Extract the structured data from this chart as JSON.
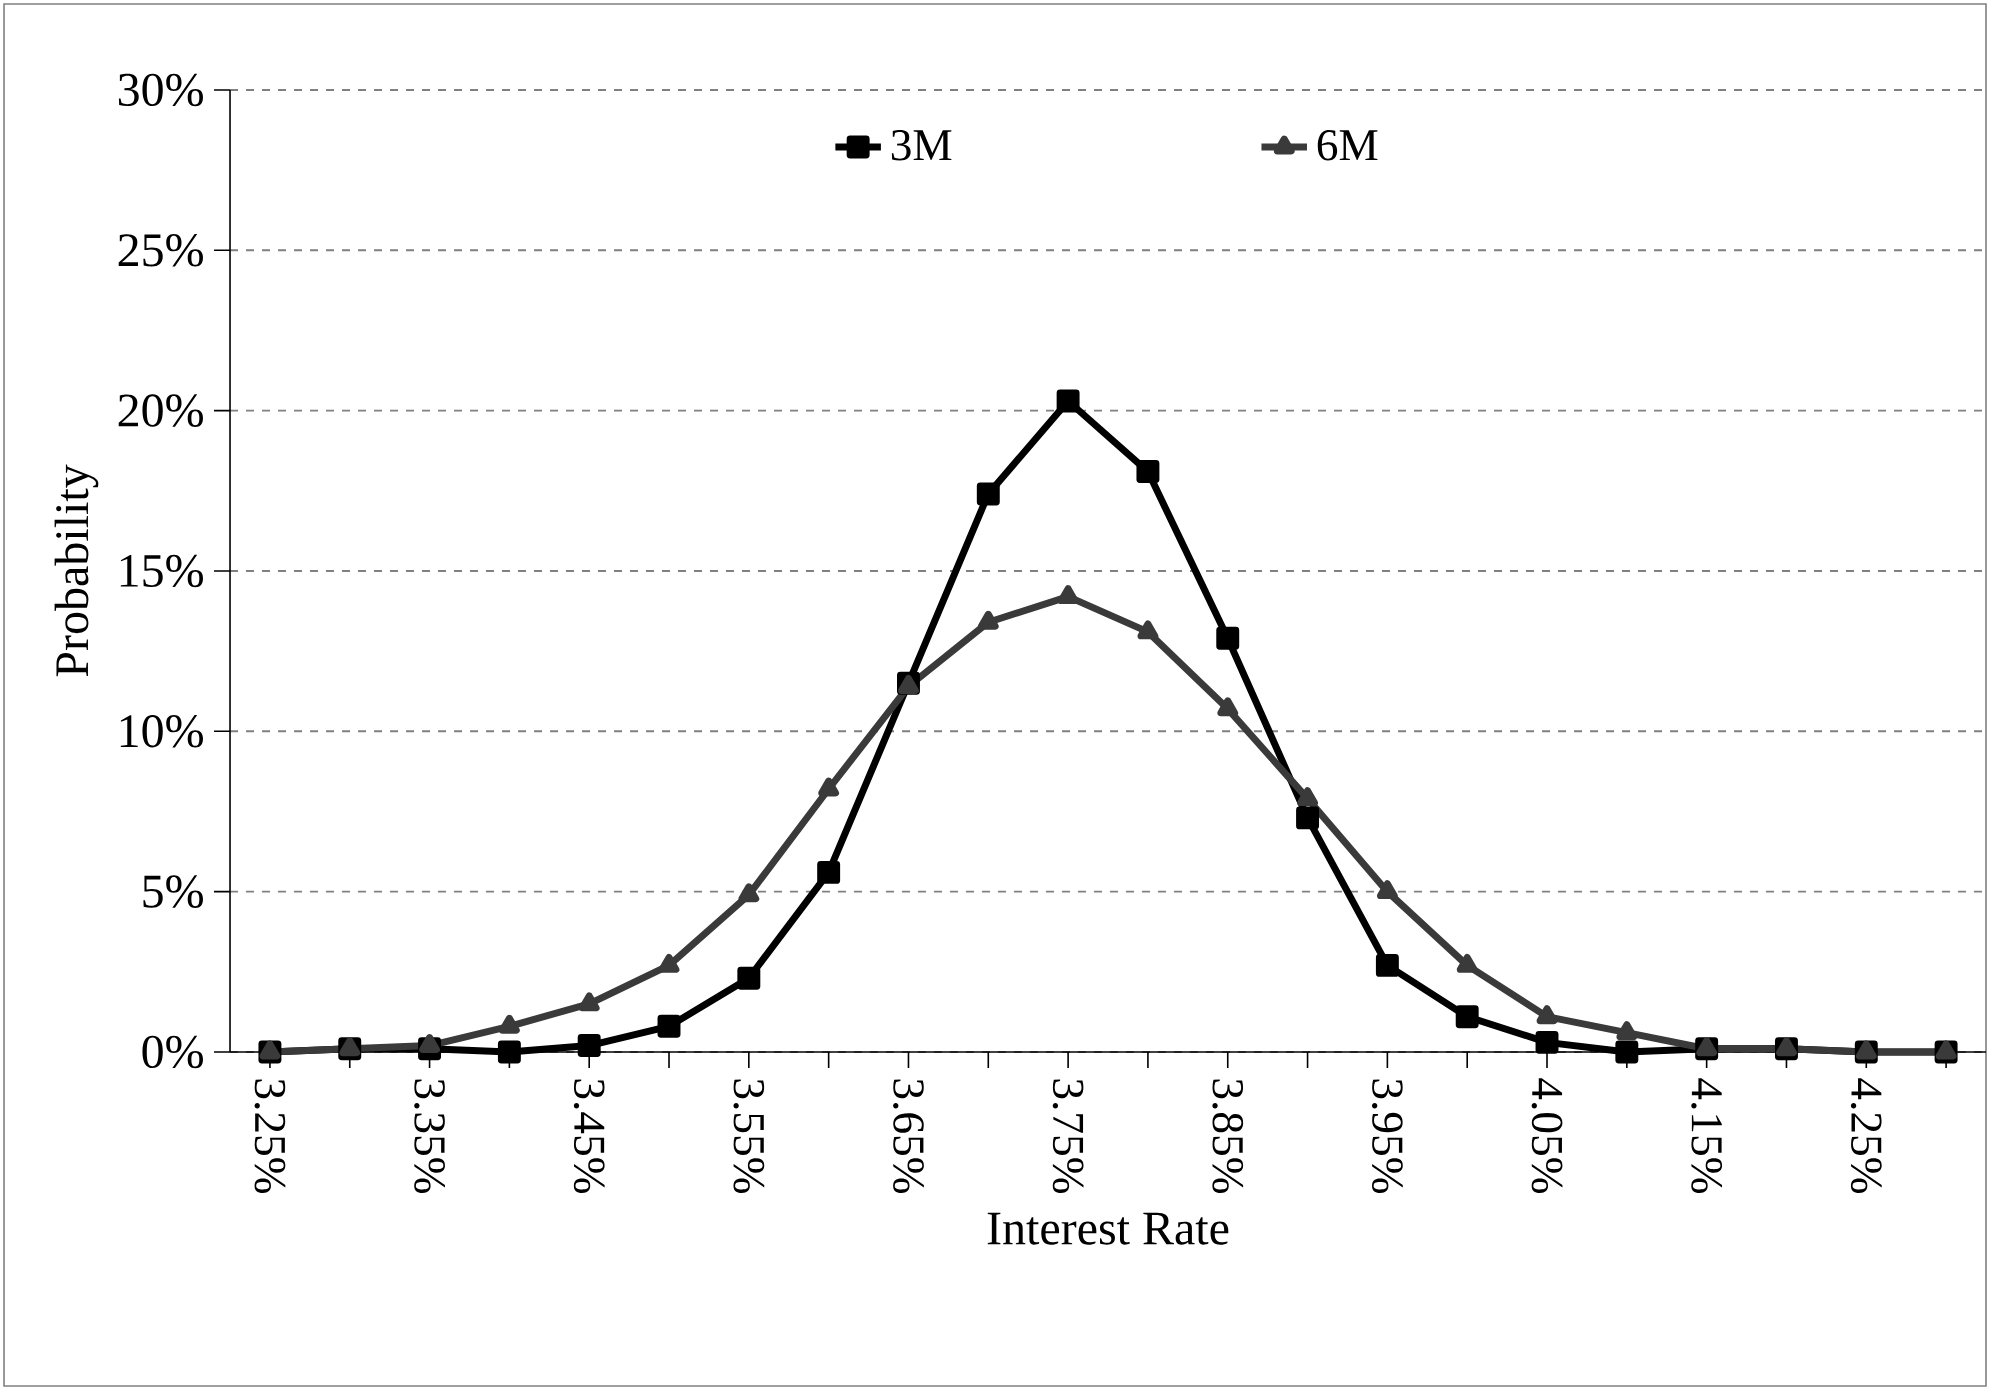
{
  "chart_data": {
    "type": "line",
    "xlabel": "Interest Rate",
    "ylabel": "Probability",
    "x": [
      3.25,
      3.3,
      3.35,
      3.4,
      3.45,
      3.5,
      3.55,
      3.6,
      3.65,
      3.7,
      3.75,
      3.8,
      3.85,
      3.9,
      3.95,
      4.0,
      4.05,
      4.1,
      4.15,
      4.2,
      4.25,
      4.3
    ],
    "series": [
      {
        "name": "3M",
        "color": "#000000",
        "marker": "square",
        "values": [
          0,
          0.1,
          0.1,
          0,
          0.2,
          0.8,
          2.3,
          5.6,
          11.5,
          17.4,
          20.3,
          18.1,
          12.9,
          7.3,
          2.7,
          1.1,
          0.3,
          0,
          0.1,
          0.1,
          0,
          0
        ]
      },
      {
        "name": "6M",
        "color": "#3a3a3a",
        "marker": "triangle",
        "values": [
          0,
          0.1,
          0.2,
          0.8,
          1.5,
          2.7,
          4.9,
          8.2,
          11.4,
          13.4,
          14.2,
          13.1,
          10.7,
          7.9,
          5.0,
          2.7,
          1.1,
          0.6,
          0.1,
          0.1,
          0,
          0
        ]
      }
    ],
    "xlim": [
      3.225,
      4.325
    ],
    "xticks": [
      {
        "value": 3.25,
        "label": "3.25%"
      },
      {
        "value": 3.3,
        "label": null
      },
      {
        "value": 3.35,
        "label": "3.35%"
      },
      {
        "value": 3.4,
        "label": null
      },
      {
        "value": 3.45,
        "label": "3.45%"
      },
      {
        "value": 3.5,
        "label": null
      },
      {
        "value": 3.55,
        "label": "3.55%"
      },
      {
        "value": 3.6,
        "label": null
      },
      {
        "value": 3.65,
        "label": "3.65%"
      },
      {
        "value": 3.7,
        "label": null
      },
      {
        "value": 3.75,
        "label": "3.75%"
      },
      {
        "value": 3.8,
        "label": null
      },
      {
        "value": 3.85,
        "label": "3.85%"
      },
      {
        "value": 3.9,
        "label": null
      },
      {
        "value": 3.95,
        "label": "3.95%"
      },
      {
        "value": 4.0,
        "label": null
      },
      {
        "value": 4.05,
        "label": "4.05%"
      },
      {
        "value": 4.1,
        "label": null
      },
      {
        "value": 4.15,
        "label": "4.15%"
      },
      {
        "value": 4.2,
        "label": null
      },
      {
        "value": 4.25,
        "label": "4.25%"
      },
      {
        "value": 4.3,
        "label": null
      }
    ],
    "ylim": [
      0,
      30
    ],
    "yticks": [
      {
        "value": 0,
        "label": "0%"
      },
      {
        "value": 5,
        "label": "5%"
      },
      {
        "value": 10,
        "label": "10%"
      },
      {
        "value": 15,
        "label": "15%"
      },
      {
        "value": 20,
        "label": "20%"
      },
      {
        "value": 25,
        "label": "25%"
      },
      {
        "value": 30,
        "label": "30%"
      }
    ],
    "grid": "y",
    "legend": "top",
    "line_style": "solid"
  }
}
